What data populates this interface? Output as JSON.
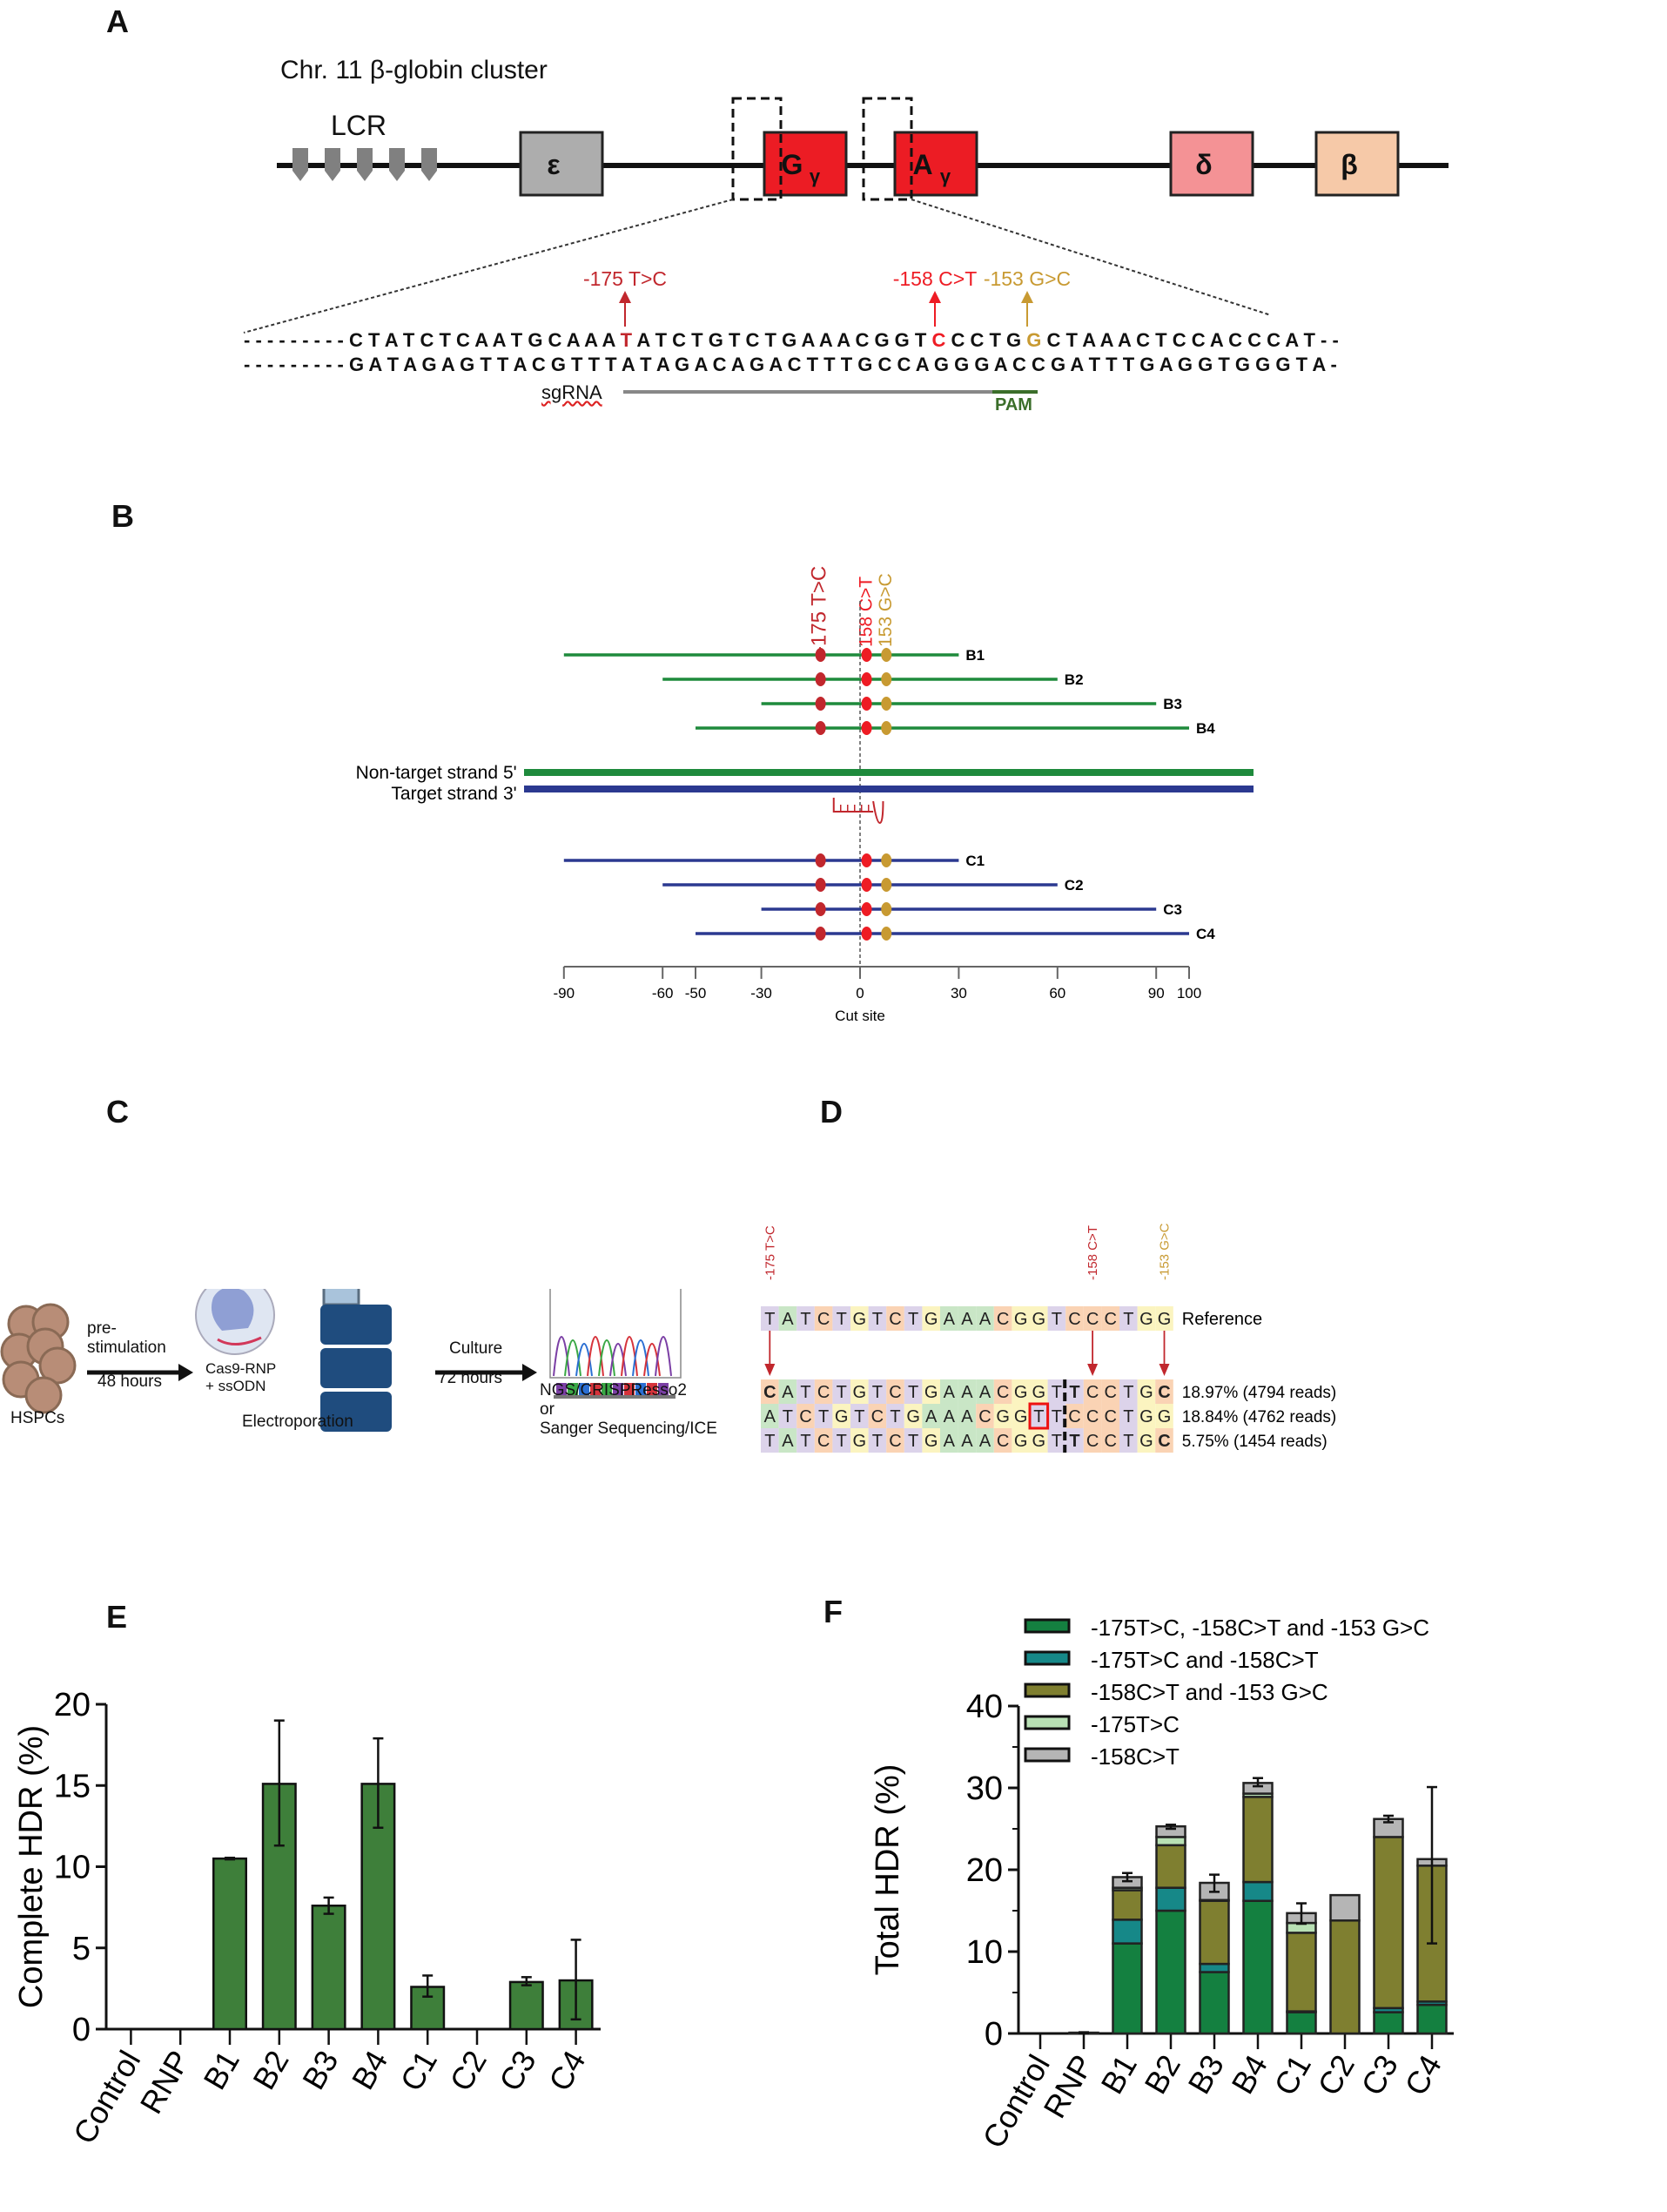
{
  "panels": {
    "A": {
      "letter": "A",
      "title": "Chr. 11 β-globin cluster",
      "lcr_label": "LCR",
      "lcr_element_count": 5,
      "genes": [
        {
          "label": "ε",
          "sub": "",
          "color": "#adadad"
        },
        {
          "label": "G",
          "sub": "γ",
          "color": "#ec1c24"
        },
        {
          "label": "A",
          "sub": "γ",
          "color": "#ec1c24"
        },
        {
          "label": "δ",
          "sub": "",
          "color": "#f49295"
        },
        {
          "label": "β",
          "sub": "",
          "color": "#f6c9a8"
        }
      ],
      "mutations": [
        {
          "label": "-175 T>C",
          "color": "#c1272d"
        },
        {
          "label": "-158 C>T",
          "color": "#ee1c24"
        },
        {
          "label": "-153 G>C",
          "color": "#c89a32"
        }
      ],
      "top_strand_prefix": "---------",
      "top_strand": "CTATCTCAATGCAAATATCTGTCTGAAACGGTCCCTGGCTAAACTCCACCCAT",
      "top_strand_suffix": "--",
      "bottom_strand_prefix": "---------",
      "bottom_strand": "GATAGAGTTACGTTTATAGACAGACTTTGCCAGGGACCGATTTGAGGTGGGTA",
      "bottom_strand_suffix": "-",
      "highlight_positions": [
        15,
        32,
        37
      ],
      "sgrna_label": "sgRNA",
      "pam_label": "PAM"
    },
    "B": {
      "letter": "B",
      "mutation_labels": [
        "-175 T>C",
        "-158 C>T",
        "-153 G>C"
      ],
      "mutation_positions": [
        -12,
        2,
        8
      ],
      "non_target_label": "Non-target strand",
      "non_target_end": "5'",
      "target_label": "Target strand",
      "target_end": "3'",
      "donors_non_target": [
        {
          "name": "B1",
          "start": -90,
          "end": 30
        },
        {
          "name": "B2",
          "start": -60,
          "end": 60
        },
        {
          "name": "B3",
          "start": -30,
          "end": 90
        },
        {
          "name": "B4",
          "start": -50,
          "end": 100
        }
      ],
      "donors_target": [
        {
          "name": "C1",
          "start": -90,
          "end": 30
        },
        {
          "name": "C2",
          "start": -60,
          "end": 60
        },
        {
          "name": "C3",
          "start": -30,
          "end": 90
        },
        {
          "name": "C4",
          "start": -50,
          "end": 100
        }
      ],
      "axis_ticks": [
        -90,
        -60,
        -50,
        -30,
        0,
        30,
        60,
        90,
        100
      ],
      "axis_label": "Cut site",
      "colors": {
        "green": "#1e8a3c",
        "blue": "#2b3990",
        "red_dark": "#c1272d",
        "red": "#ee1c24",
        "gold": "#c89a32"
      }
    },
    "C": {
      "letter": "C",
      "cells_label": "HSPCs",
      "step1_top": "pre-",
      "step1_mid": "stimulation",
      "step1_bottom": "48 hours",
      "rnp_line1": "Cas9-RNP",
      "rnp_line2": "+ ssODN",
      "electroporation_label": "Electroporation",
      "step2_top": "Culture",
      "step2_bottom": "72 hours",
      "readout_line1": "NGS/CRISPResso2",
      "readout_line2": "or",
      "readout_line3": "Sanger Sequencing/ICE",
      "chromatogram_bases": "GACTAGTCTG"
    },
    "D": {
      "letter": "D",
      "mutation_labels": [
        "-175 T>C",
        "-158 C>T",
        "-153 G>C"
      ],
      "reference_label": "Reference",
      "reference": "TATCTGTCTGAAACGGTCCCTGG",
      "reads": [
        {
          "seq": "CATCTGTCTGAAACGGTTCCTGC",
          "label": "18.97% (4794 reads)"
        },
        {
          "seq": "ATCTGTCTGAAACGGTTCCCTGG",
          "label": "18.84% (4762 reads)"
        },
        {
          "seq": "TATCTGTCTGAAACGGTTCCTGC",
          "label": "5.75% (1454 reads)"
        }
      ],
      "base_colors": {
        "A": "#c9e6c6",
        "C": "#fad3b4",
        "G": "#fbf4c0",
        "T": "#dcd3ea"
      }
    },
    "E": {
      "letter": "E"
    },
    "F": {
      "letter": "F"
    }
  },
  "chart_data": [
    {
      "type": "bar",
      "panel": "E",
      "title": "",
      "xlabel": "",
      "ylabel": "Complete HDR (%)",
      "categories": [
        "Control",
        "RNP",
        "B1",
        "B2",
        "B3",
        "B4",
        "C1",
        "C2",
        "C3",
        "C4"
      ],
      "values": [
        0,
        0,
        10.5,
        15.1,
        7.6,
        15.1,
        2.6,
        0,
        2.9,
        3.0
      ],
      "error_low": [
        0,
        0,
        10.45,
        11.3,
        7.1,
        12.4,
        2.0,
        0,
        2.7,
        0.6
      ],
      "error_high": [
        0,
        0,
        10.55,
        19.0,
        8.1,
        17.9,
        3.3,
        0,
        3.2,
        5.5
      ],
      "ylim": [
        0,
        20
      ],
      "yticks": [
        0,
        5,
        10,
        15,
        20
      ],
      "color": "#3e7f3a",
      "grid": false
    },
    {
      "type": "bar",
      "stacked": true,
      "panel": "F",
      "title": "",
      "xlabel": "",
      "ylabel": "Total HDR (%)",
      "categories": [
        "Control",
        "RNP",
        "B1",
        "B2",
        "B3",
        "B4",
        "C1",
        "C2",
        "C3",
        "C4"
      ],
      "series": [
        {
          "name": "-175T>C, -158C>T and -153 G>C",
          "color": "#148040",
          "values": [
            0,
            0.1,
            11.0,
            15.0,
            7.5,
            16.2,
            2.6,
            0,
            2.6,
            3.5
          ]
        },
        {
          "name": "-175T>C and -158C>T",
          "color": "#168888",
          "values": [
            0,
            0,
            2.9,
            2.8,
            1.0,
            2.3,
            0.1,
            0,
            0.5,
            0.4
          ]
        },
        {
          "name": "-158C>T and -153 G>C",
          "color": "#7f7f30",
          "values": [
            0,
            0,
            3.6,
            5.2,
            7.7,
            10.4,
            9.6,
            13.8,
            20.9,
            16.6
          ]
        },
        {
          "name": "-175T>C",
          "color": "#b8e0b4",
          "values": [
            0,
            0,
            0.3,
            1.0,
            0.1,
            0.4,
            1.2,
            0,
            0,
            0
          ]
        },
        {
          "name": "-158C>T",
          "color": "#b5b5b5",
          "values": [
            0,
            0,
            1.3,
            1.3,
            2.1,
            1.3,
            1.2,
            3.1,
            2.2,
            0.8
          ]
        }
      ],
      "totals": [
        0,
        0.1,
        19.1,
        25.3,
        18.4,
        30.6,
        14.7,
        16.9,
        26.2,
        21.3
      ],
      "error_bars_total": [
        [
          0,
          0
        ],
        [
          0,
          0.15
        ],
        [
          18.6,
          19.6
        ],
        [
          25.0,
          25.5
        ],
        [
          17.3,
          19.4
        ],
        [
          30.2,
          31.2
        ],
        [
          13.4,
          15.9
        ],
        [
          16.9,
          16.9
        ],
        [
          25.8,
          26.6
        ],
        [
          11.0,
          30.1
        ]
      ],
      "ylim": [
        0,
        40
      ],
      "yticks": [
        0,
        10,
        20,
        30,
        40
      ],
      "legend_position": "top",
      "grid": false
    }
  ]
}
